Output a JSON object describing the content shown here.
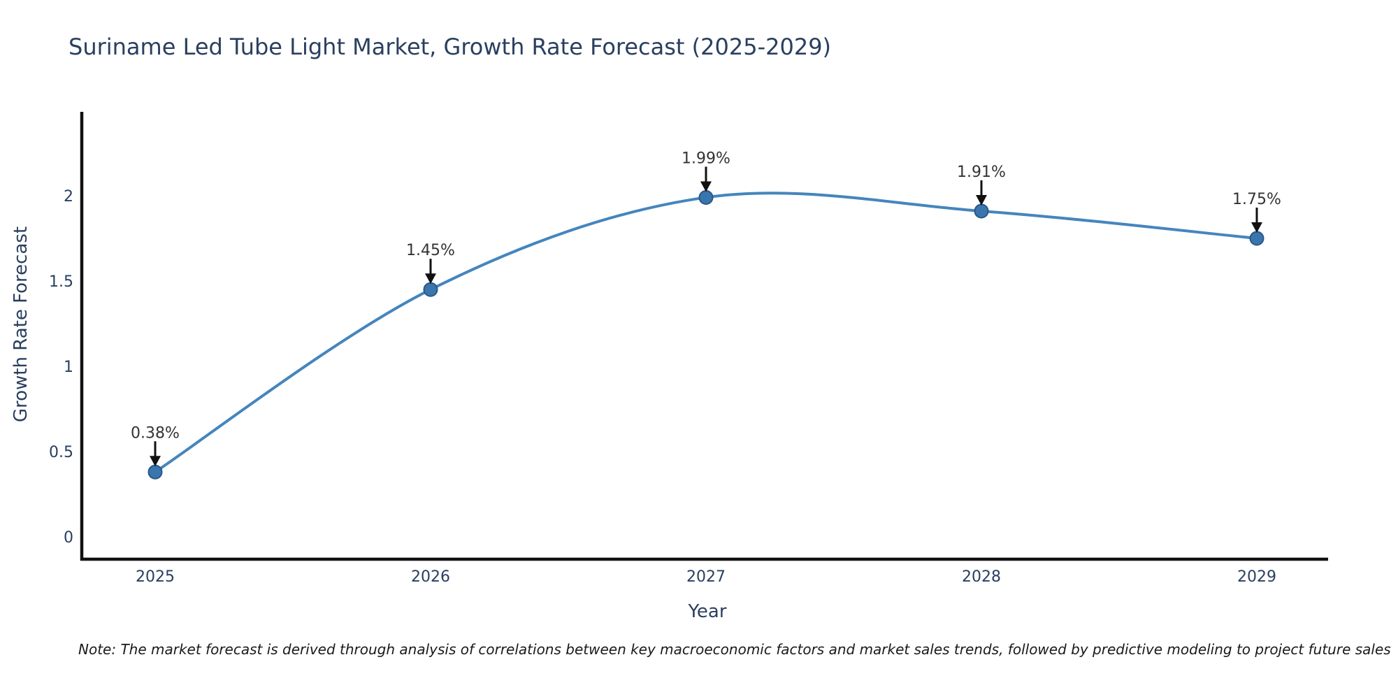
{
  "title": "Suriname Led Tube Light Market, Growth Rate Forecast (2025-2029)",
  "note": "Note: The market forecast is derived through analysis of correlations between key macroeconomic factors and market sales trends, followed by predictive modeling to project future sales",
  "chart_data": {
    "type": "line",
    "title": "Suriname Led Tube Light Market, Growth Rate Forecast (2025-2029)",
    "xlabel": "Year",
    "ylabel": "Growth Rate Forecast",
    "x": [
      2025,
      2026,
      2027,
      2028,
      2029
    ],
    "categories": [
      "2025",
      "2026",
      "2027",
      "2028",
      "2029"
    ],
    "values": [
      0.38,
      1.45,
      1.99,
      1.91,
      1.75
    ],
    "point_labels": [
      "0.38%",
      "1.45%",
      "1.99%",
      "1.91%",
      "1.75%"
    ],
    "yticks": [
      0,
      0.5,
      1,
      1.5,
      2
    ],
    "ytick_labels": [
      "0",
      "0.5",
      "1",
      "1.5",
      "2"
    ],
    "ylim": [
      -0.14,
      2.49
    ],
    "xlim": [
      2024.73,
      2029.26
    ],
    "line_shape": "spline",
    "grid": false,
    "legend": false,
    "marker_style": "circle",
    "annotation_arrows": true,
    "colors": {
      "line": "#4585bd",
      "marker_fill": "#3a76ad",
      "marker_edge": "#28588a",
      "axis": "#111111",
      "axis_text": "#2a3f5f",
      "annotation_text": "#333333",
      "arrow": "#111111",
      "title_text": "#2a3f5f",
      "background": "#ffffff"
    }
  }
}
